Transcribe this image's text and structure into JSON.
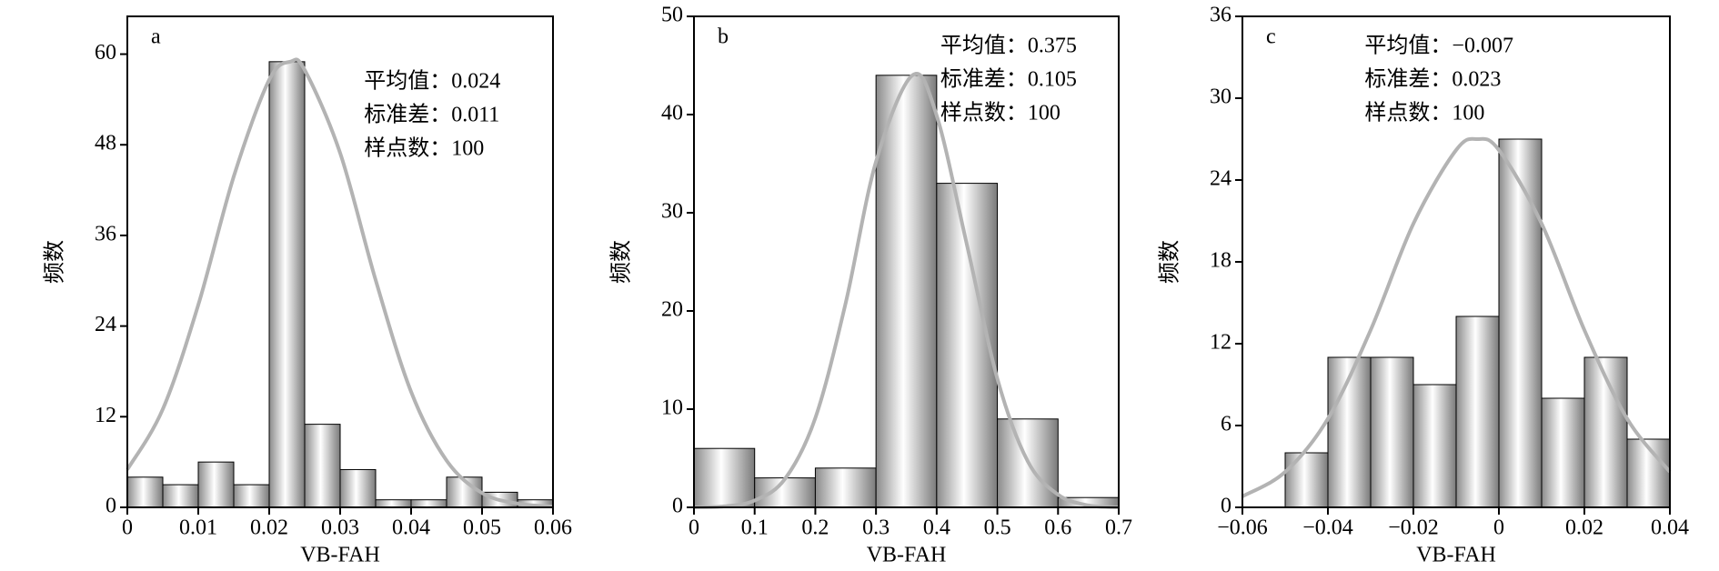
{
  "chart_data": [
    {
      "type": "histogram",
      "label": "a",
      "xlabel": "VB-FAH",
      "ylabel": "频数",
      "annotations": [
        "平均值：0.024",
        "标准差：0.011",
        "样点数：100"
      ],
      "bins": [
        0,
        0.005,
        0.01,
        0.015,
        0.02,
        0.025,
        0.03,
        0.035,
        0.04,
        0.045,
        0.05,
        0.055,
        0.06
      ],
      "values": [
        4,
        3,
        6,
        3,
        59,
        11,
        5,
        1,
        1,
        4,
        2,
        1
      ],
      "curve": {
        "x": [
          0,
          0.005,
          0.01,
          0.015,
          0.02,
          0.023,
          0.025,
          0.03,
          0.035,
          0.04,
          0.045,
          0.05,
          0.055,
          0.06
        ],
        "values": [
          5.0,
          13.0,
          26.8,
          43.8,
          56.6,
          59,
          57.9,
          46.9,
          30.1,
          15.3,
          6.2,
          1.9,
          0.5,
          0.1
        ],
        "color": "#b3b3b3"
      },
      "xlim": [
        0,
        0.06
      ],
      "xticks": [
        0,
        0.01,
        0.02,
        0.03,
        0.04,
        0.05,
        0.06
      ],
      "ylim": [
        0,
        65
      ],
      "yticks": [
        0,
        12,
        24,
        36,
        48,
        60
      ]
    },
    {
      "type": "histogram",
      "label": "b",
      "xlabel": "VB-FAH",
      "ylabel": "频数",
      "annotations": [
        "平均值：0.375",
        "标准差：0.105",
        "样点数：100"
      ],
      "bins": [
        0,
        0.1,
        0.2,
        0.3,
        0.4,
        0.5,
        0.6,
        0.7
      ],
      "values": [
        6,
        3,
        4,
        44,
        33,
        9,
        1
      ],
      "curve": {
        "x": [
          0,
          0.05,
          0.1,
          0.15,
          0.2,
          0.25,
          0.3,
          0.36,
          0.4,
          0.45,
          0.5,
          0.55,
          0.6,
          0.65,
          0.7
        ],
        "values": [
          0.0,
          0.1,
          0.7,
          2.9,
          9.1,
          20.8,
          35.2,
          44,
          39.9,
          26.7,
          13.1,
          4.7,
          1.3,
          0.2,
          0.0
        ],
        "color": "#b3b3b3"
      },
      "xlim": [
        0,
        0.7
      ],
      "xticks": [
        0,
        0.1,
        0.2,
        0.3,
        0.4,
        0.5,
        0.6,
        0.7
      ],
      "ylim": [
        0,
        50
      ],
      "yticks": [
        0,
        10,
        20,
        30,
        40,
        50
      ]
    },
    {
      "type": "histogram",
      "label": "c",
      "xlabel": "VB-FAH",
      "ylabel": "频数",
      "annotations": [
        "平均值：−0.007",
        "标准差：0.023",
        "样点数：100"
      ],
      "bins": [
        -0.05,
        -0.04,
        -0.03,
        -0.02,
        -0.01,
        0,
        0.01,
        0.02,
        0.03,
        0.04
      ],
      "values": [
        4,
        11,
        11,
        9,
        14,
        27,
        8,
        11,
        5
      ],
      "curve": {
        "x": [
          -0.06,
          -0.05,
          -0.04,
          -0.03,
          -0.02,
          -0.01,
          -0.005,
          0,
          0.01,
          0.02,
          0.03,
          0.04
        ],
        "values": [
          0.8,
          2.6,
          6.5,
          13.0,
          20.8,
          26.2,
          27,
          26.2,
          20.8,
          13.0,
          6.5,
          2.6
        ],
        "color": "#b3b3b3"
      },
      "xlim": [
        -0.06,
        0.04
      ],
      "xticks": [
        {
          "value": -0.06,
          "label": "−0.06"
        },
        {
          "value": -0.04,
          "label": "−0.04"
        },
        {
          "value": -0.02,
          "label": "−0.02"
        },
        0,
        0.02,
        0.04
      ],
      "ylim": [
        0,
        36
      ],
      "yticks": [
        0,
        6,
        12,
        18,
        24,
        30,
        36
      ]
    }
  ]
}
